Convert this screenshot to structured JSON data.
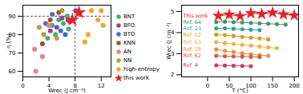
{
  "chart_data": [
    {
      "type": "scatter",
      "xlabel": "Wrec (J cm⁻³)",
      "ylabel": "η (%)",
      "xlim": [
        0,
        13.5
      ],
      "xticks": [
        0,
        4,
        8,
        12
      ],
      "ylim": [
        57,
        96
      ],
      "yticks": [
        60,
        70,
        80,
        90
      ],
      "xline": 8,
      "yline": 90,
      "legend": "right",
      "series": [
        {
          "name": "BNT",
          "color": "#3cb371",
          "marker": "circle",
          "x": [
            4.5,
            5.5,
            6.2,
            6.8,
            7.0,
            5.0,
            3.8
          ],
          "y": [
            85,
            88,
            86,
            90,
            83,
            80,
            78
          ]
        },
        {
          "name": "BFO",
          "color": "#8e44ad",
          "marker": "circle",
          "x": [
            5.2,
            6.0,
            7.2,
            4.2
          ],
          "y": [
            84,
            89,
            87,
            82
          ]
        },
        {
          "name": "BTO",
          "color": "#3b6fd1",
          "marker": "circle",
          "x": [
            3.5,
            4.5,
            5.8,
            6.5,
            8.1
          ],
          "y": [
            86,
            91,
            82,
            80,
            93
          ]
        },
        {
          "name": "KNN",
          "color": "#a0522d",
          "marker": "circle",
          "x": [
            3.0,
            4.2,
            5.5,
            6.9
          ],
          "y": [
            75,
            88,
            92,
            88
          ]
        },
        {
          "name": "AN",
          "color": "#f08080",
          "marker": "circle",
          "x": [
            2.0,
            1.8,
            3.0,
            4.0
          ],
          "y": [
            60,
            72,
            68,
            85
          ]
        },
        {
          "name": "NN",
          "color": "#b5a02a",
          "marker": "circle",
          "x": [
            2.5,
            3.2,
            5.2,
            6.0
          ],
          "y": [
            84,
            80,
            78,
            93
          ]
        },
        {
          "name": "high-entropy",
          "color": "#f5a623",
          "marker": "circle",
          "x": [
            10.5,
            11.5,
            12.3,
            10.0,
            9.5,
            12.0
          ],
          "y": [
            93,
            88,
            85,
            80,
            76,
            93
          ]
        },
        {
          "name": "this work",
          "color": "#e8202a",
          "marker": "star",
          "x": [
            7.6,
            8.6
          ],
          "y": [
            88,
            92
          ]
        }
      ]
    },
    {
      "type": "line",
      "xlabel": "T (°C)",
      "ylabel": "Wrec (J cm⁻³)",
      "xlim": [
        -60,
        210
      ],
      "xticks": [
        0,
        50,
        100,
        150,
        200
      ],
      "ylim": [
        1.9,
        5.3
      ],
      "yticks": [
        2,
        3,
        4,
        5
      ],
      "legend": "inline",
      "series": [
        {
          "name": "This work",
          "color": "#e8202a",
          "marker": "star",
          "x": [
            25,
            50,
            75,
            100,
            125,
            150,
            175,
            200
          ],
          "y": [
            4.8,
            4.85,
            4.78,
            4.92,
            4.88,
            4.95,
            4.86,
            4.82
          ]
        },
        {
          "name": "Ref. 64",
          "color": "#3a9a6a",
          "marker": "circle",
          "x": [
            20,
            40,
            60,
            80,
            100,
            120,
            140,
            160,
            180
          ],
          "y": [
            4.5,
            4.52,
            4.5,
            4.48,
            4.46,
            4.44,
            4.42,
            4.4,
            4.38
          ]
        },
        {
          "name": "Ref. 23",
          "color": "#2aa5a0",
          "marker": "circle",
          "x": [
            20,
            40,
            60,
            80,
            100,
            120
          ],
          "y": [
            4.2,
            4.2,
            4.18,
            4.16,
            4.14,
            4.12
          ]
        },
        {
          "name": "Ref. 12",
          "color": "#d4a017",
          "marker": "circle",
          "x": [
            20,
            40,
            60,
            80,
            100,
            120,
            140
          ],
          "y": [
            3.9,
            3.88,
            3.84,
            3.8,
            3.76,
            3.72,
            3.68
          ]
        },
        {
          "name": "Ref. 63",
          "color": "#f5b041",
          "marker": "circle",
          "x": [
            20,
            40,
            60,
            80,
            100,
            120,
            140,
            160
          ],
          "y": [
            3.55,
            3.5,
            3.46,
            3.42,
            3.38,
            3.34,
            3.3,
            3.26
          ]
        },
        {
          "name": "Ref. 15",
          "color": "#f08c3c",
          "marker": "circle",
          "x": [
            20,
            40,
            60,
            80,
            100,
            120,
            140
          ],
          "y": [
            3.2,
            3.14,
            3.08,
            3.02,
            2.97,
            2.93,
            2.9
          ]
        },
        {
          "name": "Ref. 62",
          "color": "#e5533d",
          "marker": "circle",
          "x": [
            20,
            40,
            60,
            80,
            100,
            120
          ],
          "y": [
            2.9,
            2.88,
            2.87,
            2.86,
            2.85,
            2.84
          ]
        },
        {
          "name": "Ref. 4",
          "color": "#d6336c",
          "marker": "circle",
          "x": [
            20,
            40,
            60,
            80,
            100
          ],
          "y": [
            2.45,
            2.44,
            2.43,
            2.42,
            2.41
          ]
        }
      ]
    }
  ]
}
